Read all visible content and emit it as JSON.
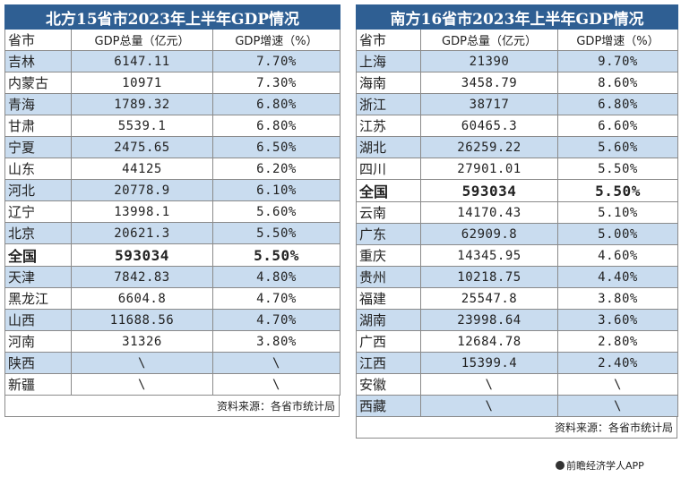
{
  "left": {
    "title": "北方15省市2023年上半年GDP情况",
    "columns": [
      "省市",
      "GDP总量（亿元）",
      "GDP增速（%）"
    ],
    "rows": [
      {
        "name": "吉林",
        "gdp": "6147.11",
        "growth": "7.70%"
      },
      {
        "name": "内蒙古",
        "gdp": "10971",
        "growth": "7.30%"
      },
      {
        "name": "青海",
        "gdp": "1789.32",
        "growth": "6.80%"
      },
      {
        "name": "甘肃",
        "gdp": "5539.1",
        "growth": "6.80%"
      },
      {
        "name": "宁夏",
        "gdp": "2475.65",
        "growth": "6.50%"
      },
      {
        "name": "山东",
        "gdp": "44125",
        "growth": "6.20%"
      },
      {
        "name": "河北",
        "gdp": "20778.9",
        "growth": "6.10%"
      },
      {
        "name": "辽宁",
        "gdp": "13998.1",
        "growth": "5.60%"
      },
      {
        "name": "北京",
        "gdp": "20621.3",
        "growth": "5.50%"
      },
      {
        "name": "全国",
        "gdp": "593034",
        "growth": "5.50%",
        "total": true
      },
      {
        "name": "天津",
        "gdp": "7842.83",
        "growth": "4.80%"
      },
      {
        "name": "黑龙江",
        "gdp": "6604.8",
        "growth": "4.70%"
      },
      {
        "name": "山西",
        "gdp": "11688.56",
        "growth": "4.70%"
      },
      {
        "name": "河南",
        "gdp": "31326",
        "growth": "3.80%"
      },
      {
        "name": "陕西",
        "gdp": "\\",
        "growth": "\\"
      },
      {
        "name": "新疆",
        "gdp": "\\",
        "growth": "\\"
      }
    ],
    "source": "资料来源：各省市统计局"
  },
  "right": {
    "title": "南方16省市2023年上半年GDP情况",
    "columns": [
      "省市",
      "GDP总量（亿元）",
      "GDP增速（%）"
    ],
    "rows": [
      {
        "name": "上海",
        "gdp": "21390",
        "growth": "9.70%"
      },
      {
        "name": "海南",
        "gdp": "3458.79",
        "growth": "8.60%"
      },
      {
        "name": "浙江",
        "gdp": "38717",
        "growth": "6.80%"
      },
      {
        "name": "江苏",
        "gdp": "60465.3",
        "growth": "6.60%"
      },
      {
        "name": "湖北",
        "gdp": "26259.22",
        "growth": "5.60%"
      },
      {
        "name": "四川",
        "gdp": "27901.01",
        "growth": "5.50%"
      },
      {
        "name": "全国",
        "gdp": "593034",
        "growth": "5.50%",
        "total": true
      },
      {
        "name": "云南",
        "gdp": "14170.43",
        "growth": "5.10%"
      },
      {
        "name": "广东",
        "gdp": "62909.8",
        "growth": "5.00%"
      },
      {
        "name": "重庆",
        "gdp": "14345.95",
        "growth": "4.60%"
      },
      {
        "name": "贵州",
        "gdp": "10218.75",
        "growth": "4.40%"
      },
      {
        "name": "福建",
        "gdp": "25547.8",
        "growth": "3.80%"
      },
      {
        "name": "湖南",
        "gdp": "23998.64",
        "growth": "3.60%"
      },
      {
        "name": "广西",
        "gdp": "12684.78",
        "growth": "2.80%"
      },
      {
        "name": "江西",
        "gdp": "15399.4",
        "growth": "2.40%"
      },
      {
        "name": "安徽",
        "gdp": "\\",
        "growth": "\\"
      },
      {
        "name": "西藏",
        "gdp": "\\",
        "growth": "\\"
      }
    ],
    "source": "资料来源：各省市统计局"
  },
  "watermark": "前瞻经济学人APP",
  "colors": {
    "title_bg": "#2f5f93",
    "alt_row": "#c9dcef"
  }
}
